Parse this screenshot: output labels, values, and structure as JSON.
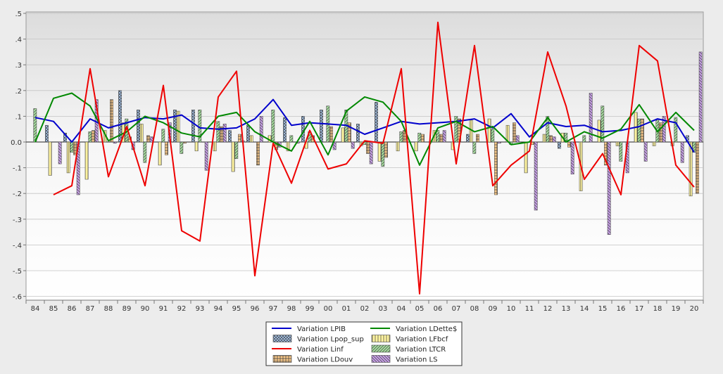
{
  "chart_data": {
    "type": "bar",
    "title": "",
    "xlabel": "",
    "ylabel": "",
    "categories": [
      "84",
      "85",
      "86",
      "87",
      "88",
      "89",
      "90",
      "91",
      "92",
      "93",
      "94",
      "95",
      "96",
      "97",
      "98",
      "99",
      "00",
      "01",
      "02",
      "03",
      "04",
      "05",
      "06",
      "07",
      "08",
      "09",
      "10",
      "11",
      "12",
      "13",
      "14",
      "15",
      "16",
      "17",
      "18",
      "19",
      "20"
    ],
    "yticks": [
      ".5",
      ".4",
      ".3",
      ".2",
      ".1",
      "0.0",
      "-.1",
      "-.2",
      "-.3",
      "-.4",
      "-.5",
      "-.6"
    ],
    "ylim": [
      -0.62,
      0.52
    ],
    "grid": true,
    "legend_position": "bottom-center",
    "series": [
      {
        "name": "Variation LPIB",
        "kind": "line",
        "color": "#0000cc",
        "values": [
          0.095,
          0.08,
          0.0,
          0.09,
          0.055,
          0.075,
          0.095,
          0.09,
          0.105,
          0.055,
          0.05,
          0.055,
          0.09,
          0.165,
          0.065,
          0.075,
          0.07,
          0.065,
          0.03,
          0.055,
          0.08,
          0.07,
          0.075,
          0.08,
          0.09,
          0.055,
          0.11,
          0.02,
          0.075,
          0.06,
          0.065,
          0.04,
          0.045,
          0.06,
          0.09,
          0.075,
          -0.04
        ]
      },
      {
        "name": "Variation LDette$",
        "kind": "line",
        "color": "#008800",
        "values": [
          0.0,
          0.17,
          0.19,
          0.14,
          0.005,
          0.04,
          0.1,
          0.075,
          0.035,
          0.02,
          0.1,
          0.115,
          0.04,
          0.0,
          -0.035,
          0.08,
          -0.05,
          0.12,
          0.175,
          0.155,
          0.08,
          -0.09,
          0.055,
          0.08,
          0.04,
          0.06,
          -0.01,
          0.0,
          0.095,
          0.0,
          0.04,
          0.015,
          0.05,
          0.145,
          0.04,
          0.115,
          0.045
        ]
      },
      {
        "name": "Variation Linf",
        "kind": "line",
        "color": "#ee0000",
        "values": [
          null,
          -0.205,
          -0.17,
          0.285,
          -0.135,
          0.06,
          -0.17,
          0.22,
          -0.345,
          -0.385,
          0.175,
          0.275,
          -0.52,
          -0.005,
          -0.16,
          0.045,
          -0.105,
          -0.085,
          0.005,
          -0.005,
          0.285,
          -0.59,
          0.465,
          -0.085,
          0.375,
          -0.17,
          -0.09,
          -0.035,
          0.35,
          0.14,
          -0.145,
          -0.045,
          -0.205,
          0.375,
          0.315,
          -0.09,
          -0.175
        ]
      },
      {
        "name": "Variation Lpop_sup",
        "kind": "bar",
        "color": "#a8c8f0",
        "pattern": "crosshatch",
        "values": [
          0.0,
          0.065,
          0.035,
          0.0,
          0.0,
          0.2,
          0.125,
          0.0,
          0.125,
          0.125,
          0.0,
          0.045,
          0.065,
          0.0,
          0.095,
          0.1,
          0.125,
          0.0,
          0.07,
          0.155,
          0.0,
          0.0,
          0.0,
          0.0,
          0.03,
          0.0,
          0.0,
          0.0,
          0.0,
          -0.025,
          0.0,
          0.0,
          0.0,
          0.0,
          0.0,
          0.0,
          0.025
        ]
      },
      {
        "name": "Variation LFbcf",
        "kind": "bar",
        "color": "#fff4a0",
        "pattern": "vertical",
        "values": [
          0.0,
          -0.13,
          -0.12,
          -0.145,
          0.045,
          0.075,
          0.07,
          -0.09,
          0.12,
          -0.035,
          -0.035,
          -0.115,
          0.025,
          0.025,
          -0.035,
          -0.025,
          0.0,
          0.055,
          -0.015,
          -0.075,
          -0.035,
          -0.035,
          0.045,
          -0.03,
          0.085,
          0.09,
          0.065,
          -0.12,
          0.03,
          0.035,
          -0.19,
          0.085,
          -0.015,
          0.115,
          -0.015,
          -0.015,
          -0.21
        ]
      },
      {
        "name": "Variation LTCR",
        "kind": "bar",
        "color": "#a8e0a0",
        "pattern": "diagonal",
        "values": [
          0.13,
          0.0,
          -0.04,
          0.04,
          0.0,
          0.09,
          -0.08,
          0.05,
          -0.045,
          0.125,
          0.08,
          -0.065,
          0.0,
          0.125,
          0.025,
          0.04,
          0.14,
          0.125,
          -0.01,
          -0.095,
          0.04,
          0.035,
          0.045,
          0.1,
          -0.045,
          0.05,
          -0.01,
          0.0,
          0.1,
          0.035,
          0.025,
          0.14,
          -0.075,
          0.09,
          0.085,
          0.095,
          -0.04
        ]
      },
      {
        "name": "Variation LDouv",
        "kind": "bar",
        "color": "#f8c888",
        "pattern": "grid",
        "values": [
          0.0,
          0.0,
          -0.05,
          0.045,
          0.165,
          0.02,
          0.025,
          -0.05,
          -0.005,
          0.0,
          0.06,
          0.03,
          -0.09,
          -0.03,
          0.0,
          0.025,
          0.06,
          0.075,
          -0.045,
          -0.06,
          0.045,
          0.03,
          0.03,
          0.09,
          0.03,
          -0.205,
          0.075,
          -0.01,
          0.025,
          -0.02,
          0.0,
          -0.09,
          0.0,
          0.09,
          0.075,
          0.0,
          -0.2
        ]
      },
      {
        "name": "Variation LS",
        "kind": "bar",
        "color": "#c8a0e8",
        "pattern": "diagonal-back",
        "values": [
          0.0,
          -0.085,
          -0.205,
          0.165,
          -0.005,
          -0.03,
          0.02,
          0.075,
          0.0,
          -0.11,
          0.07,
          0.005,
          0.1,
          -0.02,
          -0.005,
          0.0,
          -0.03,
          -0.025,
          -0.085,
          0.0,
          0.0,
          0.0,
          0.045,
          0.0,
          0.0,
          -0.005,
          0.025,
          -0.265,
          0.02,
          -0.125,
          0.19,
          -0.36,
          -0.12,
          -0.075,
          0.1,
          -0.08,
          0.35
        ]
      }
    ]
  }
}
